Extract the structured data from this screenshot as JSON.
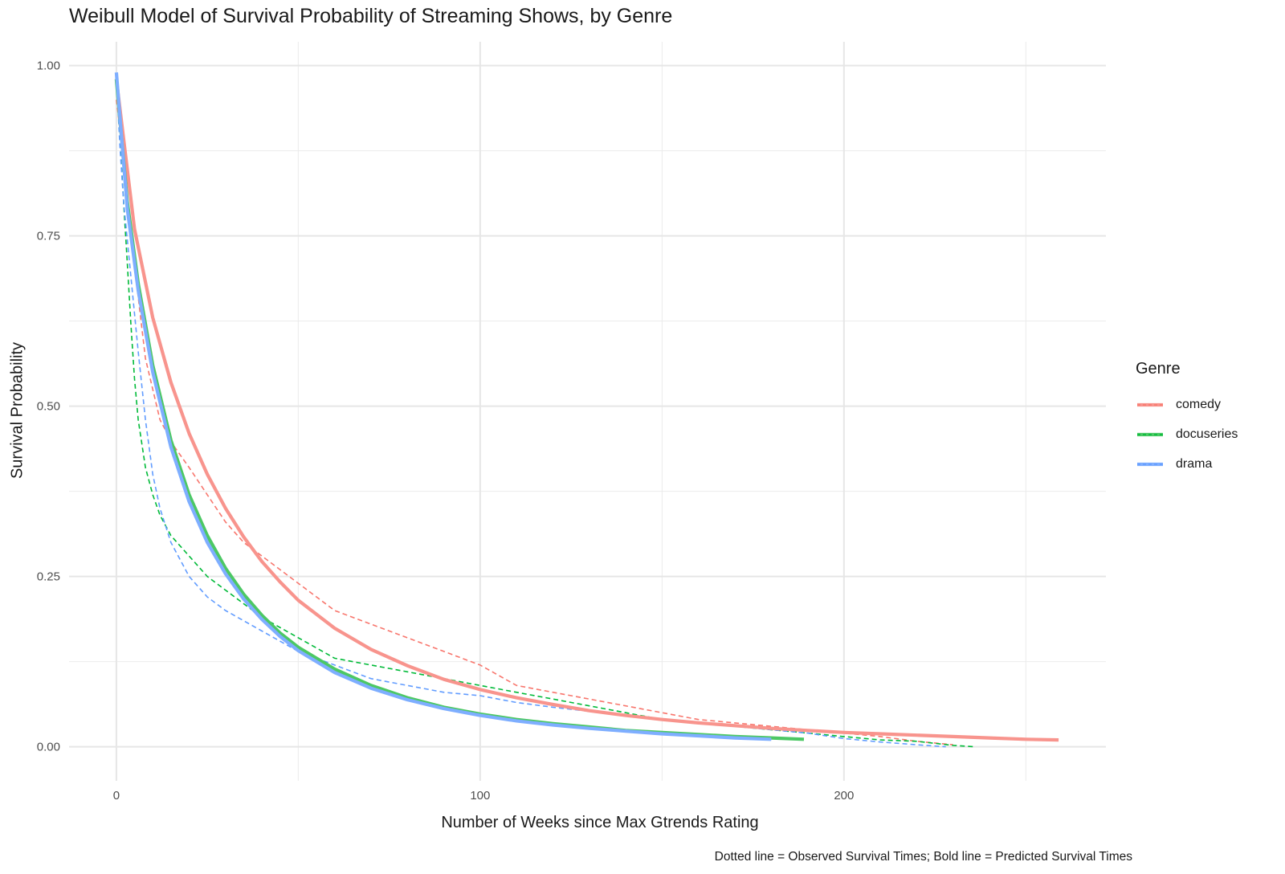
{
  "chart_data": {
    "type": "line",
    "title": "Weibull Model of Survival Probability of Streaming Shows, by Genre",
    "xlabel": "Number of Weeks since Max Gtrends Rating",
    "ylabel": "Survival Probability",
    "caption": "Dotted line = Observed Survival Times; Bold line = Predicted Survival Times",
    "xlim": [
      -13,
      272
    ],
    "ylim": [
      -0.05,
      1.035
    ],
    "x_ticks": [
      0,
      100,
      200
    ],
    "x_tick_labels": [
      "0",
      "100",
      "200"
    ],
    "y_ticks": [
      0,
      0.25,
      0.5,
      0.75,
      1
    ],
    "y_tick_labels": [
      "0.00",
      "0.25",
      "0.50",
      "0.75",
      "1.00"
    ],
    "grid": true,
    "legend": {
      "title": "Genre",
      "placement": "right",
      "entries": [
        "comedy",
        "docuseries",
        "drama"
      ]
    },
    "colors": {
      "comedy": "#F8766D",
      "docuseries": "#00BA38",
      "drama": "#619CFF",
      "comedy_bold": "#F8948D",
      "docuseries_bold": "#4CC864",
      "drama_bold": "#7EAEFF"
    },
    "series": [
      {
        "name": "comedy",
        "style": "predicted",
        "x": [
          0,
          5,
          10,
          15,
          20,
          25,
          30,
          35,
          40,
          45,
          50,
          60,
          70,
          80,
          90,
          100,
          110,
          120,
          130,
          140,
          150,
          160,
          170,
          180,
          190,
          200,
          210,
          220,
          230,
          240,
          250,
          259
        ],
        "values": [
          0.98,
          0.76,
          0.63,
          0.535,
          0.46,
          0.4,
          0.35,
          0.308,
          0.272,
          0.242,
          0.215,
          0.174,
          0.143,
          0.119,
          0.099,
          0.084,
          0.072,
          0.062,
          0.053,
          0.046,
          0.04,
          0.035,
          0.031,
          0.027,
          0.024,
          0.021,
          0.019,
          0.017,
          0.015,
          0.013,
          0.011,
          0.01
        ]
      },
      {
        "name": "docuseries",
        "style": "predicted",
        "x": [
          0,
          3,
          6,
          10,
          15,
          20,
          25,
          30,
          35,
          40,
          45,
          50,
          60,
          70,
          80,
          90,
          100,
          110,
          120,
          130,
          140,
          150,
          160,
          170,
          180,
          189
        ],
        "values": [
          0.98,
          0.8,
          0.68,
          0.56,
          0.45,
          0.37,
          0.31,
          0.262,
          0.224,
          0.193,
          0.167,
          0.146,
          0.114,
          0.09,
          0.072,
          0.058,
          0.048,
          0.04,
          0.034,
          0.029,
          0.024,
          0.021,
          0.018,
          0.015,
          0.013,
          0.011
        ]
      },
      {
        "name": "drama",
        "style": "predicted",
        "x": [
          0,
          3,
          6,
          10,
          15,
          20,
          25,
          30,
          35,
          40,
          45,
          50,
          60,
          70,
          80,
          90,
          100,
          110,
          120,
          130,
          140,
          150,
          160,
          170,
          180
        ],
        "values": [
          0.99,
          0.79,
          0.67,
          0.55,
          0.44,
          0.36,
          0.3,
          0.254,
          0.217,
          0.187,
          0.162,
          0.141,
          0.109,
          0.086,
          0.069,
          0.056,
          0.046,
          0.038,
          0.032,
          0.027,
          0.023,
          0.019,
          0.016,
          0.013,
          0.011
        ]
      },
      {
        "name": "comedy",
        "style": "observed",
        "x": [
          0,
          2,
          4,
          6,
          8,
          12,
          16,
          20,
          25,
          30,
          35,
          40,
          50,
          60,
          70,
          80,
          90,
          100,
          110,
          120,
          130,
          140,
          150,
          160,
          170,
          180,
          190,
          200,
          210,
          220,
          230
        ],
        "values": [
          0.95,
          0.86,
          0.76,
          0.66,
          0.57,
          0.48,
          0.44,
          0.41,
          0.37,
          0.33,
          0.3,
          0.28,
          0.24,
          0.2,
          0.18,
          0.16,
          0.14,
          0.12,
          0.09,
          0.08,
          0.07,
          0.06,
          0.05,
          0.04,
          0.035,
          0.03,
          0.025,
          0.02,
          0.015,
          0.008,
          0.003
        ]
      },
      {
        "name": "docuseries",
        "style": "observed",
        "x": [
          0,
          1,
          2,
          3,
          4,
          5,
          6,
          8,
          10,
          12,
          15,
          20,
          25,
          30,
          40,
          50,
          60,
          70,
          80,
          90,
          100,
          110,
          120,
          130,
          140,
          150,
          160,
          170,
          180,
          190,
          200,
          210,
          220,
          230,
          236
        ],
        "values": [
          0.98,
          0.89,
          0.8,
          0.71,
          0.62,
          0.54,
          0.48,
          0.41,
          0.37,
          0.34,
          0.31,
          0.28,
          0.25,
          0.23,
          0.19,
          0.16,
          0.13,
          0.12,
          0.11,
          0.1,
          0.09,
          0.08,
          0.07,
          0.06,
          0.05,
          0.04,
          0.035,
          0.03,
          0.025,
          0.02,
          0.015,
          0.01,
          0.008,
          0.002,
          0.0
        ]
      },
      {
        "name": "drama",
        "style": "observed",
        "x": [
          0,
          1,
          2,
          4,
          6,
          8,
          10,
          12,
          15,
          20,
          25,
          30,
          40,
          50,
          60,
          70,
          80,
          90,
          100,
          110,
          120,
          130,
          140,
          150,
          160,
          170,
          180,
          190,
          200,
          210,
          220,
          228
        ],
        "values": [
          0.98,
          0.88,
          0.8,
          0.69,
          0.58,
          0.48,
          0.4,
          0.35,
          0.3,
          0.25,
          0.22,
          0.2,
          0.17,
          0.14,
          0.12,
          0.1,
          0.09,
          0.08,
          0.075,
          0.065,
          0.058,
          0.052,
          0.045,
          0.04,
          0.035,
          0.03,
          0.025,
          0.02,
          0.012,
          0.007,
          0.003,
          0.0
        ]
      }
    ]
  }
}
